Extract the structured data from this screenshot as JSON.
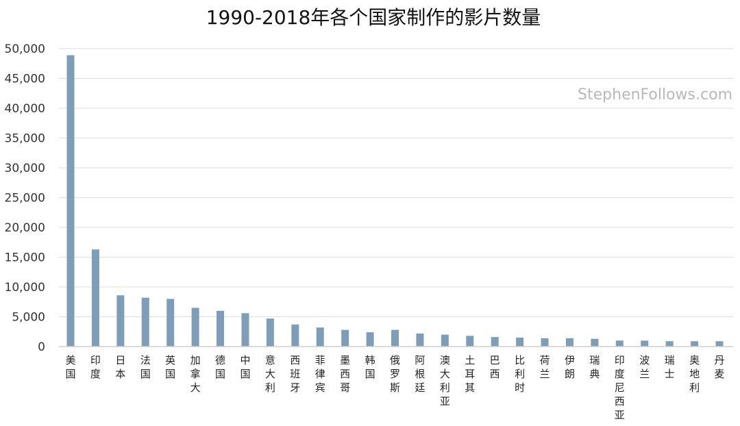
{
  "chart_data": {
    "type": "bar",
    "title": "1990-2018年各个国家制作的影片数量",
    "watermark": "StephenFollows.com",
    "xlabel": "",
    "ylabel": "",
    "ylim": [
      0,
      50000
    ],
    "y_ticks": [
      "0",
      "5,000",
      "10,000",
      "15,000",
      "20,000",
      "25,000",
      "30,000",
      "35,000",
      "40,000",
      "45,000",
      "50,000"
    ],
    "grid": true,
    "legend": "none",
    "bar_color": "#7f9db7",
    "categories": [
      "美国",
      "印度",
      "日本",
      "法国",
      "英国",
      "加拿大",
      "德国",
      "中国",
      "意大利",
      "西班牙",
      "菲律宾",
      "墨西哥",
      "韩国",
      "俄罗斯",
      "阿根廷",
      "澳大利亚",
      "土耳其",
      "巴西",
      "比利时",
      "荷兰",
      "伊朗",
      "瑞典",
      "印度尼西亚",
      "波兰",
      "瑞士",
      "奥地利",
      "丹麦"
    ],
    "values": [
      48900,
      16300,
      8600,
      8200,
      8000,
      6500,
      6000,
      5600,
      4700,
      3700,
      3200,
      2800,
      2400,
      2800,
      2200,
      2000,
      1800,
      1600,
      1500,
      1400,
      1400,
      1300,
      1000,
      1000,
      900,
      900,
      900
    ]
  }
}
